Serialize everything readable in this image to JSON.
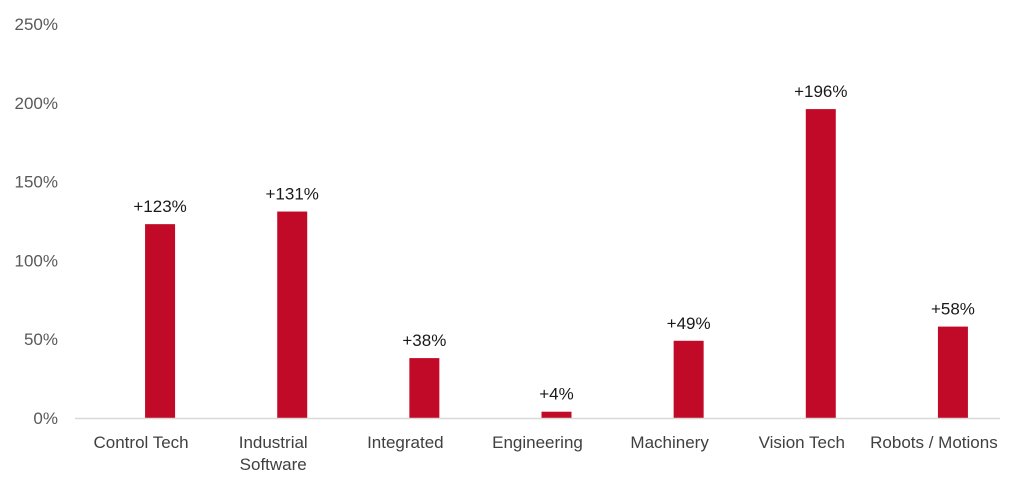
{
  "chart_data": {
    "type": "bar",
    "categories": [
      [
        "Control Tech"
      ],
      [
        "Industrial",
        "Software"
      ],
      [
        "Integrated"
      ],
      [
        "Engineering"
      ],
      [
        "Machinery"
      ],
      [
        "Vision Tech"
      ],
      [
        "Robots / Motions"
      ]
    ],
    "values": [
      123,
      131,
      38,
      4,
      49,
      196,
      58
    ],
    "data_labels": [
      "+123%",
      "+131%",
      "+38%",
      "+4%",
      "+49%",
      "+196%",
      "+58%"
    ],
    "yticks": [
      "0%",
      "50%",
      "100%",
      "150%",
      "200%",
      "250%"
    ],
    "ylim": [
      0,
      250
    ],
    "grid": false,
    "legend": "none",
    "title": "",
    "xlabel": "",
    "ylabel": "",
    "colors": {
      "bar": "#C00A28",
      "axis": "#D9D9D9"
    }
  }
}
